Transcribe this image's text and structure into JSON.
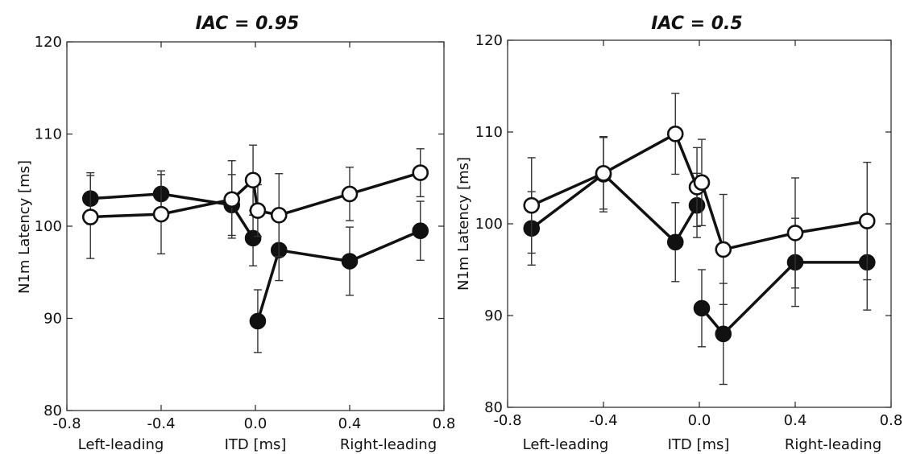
{
  "chart_data": [
    {
      "type": "line",
      "title": "IAC = 0.95",
      "ylabel": "N1m Latency [ms]",
      "xlabel": "ITD [ms]",
      "x_side_labels": {
        "left": "Left-leading",
        "right": "Right-leading"
      },
      "xlim": [
        -0.8,
        0.8
      ],
      "ylim": [
        80,
        120
      ],
      "xticks": [
        "-0.8",
        "-0.4",
        "0.0",
        "0.4",
        "0.8"
      ],
      "yticks": [
        "80",
        "90",
        "100",
        "110",
        "120"
      ],
      "grid": false,
      "series": [
        {
          "marker": "filled",
          "x": [
            -0.7,
            -0.4,
            -0.1,
            -0.01,
            0.01,
            0.1,
            0.4,
            0.7
          ],
          "y": [
            103.0,
            103.5,
            102.3,
            98.7,
            89.7,
            97.4,
            96.2,
            99.5
          ],
          "err": [
            2.8,
            2.5,
            3.3,
            3.0,
            3.4,
            3.3,
            3.7,
            3.2
          ],
          "connect": [
            [
              0,
              1,
              2,
              3
            ],
            [
              4,
              5,
              6,
              7
            ]
          ]
        },
        {
          "marker": "open",
          "x": [
            -0.7,
            -0.4,
            -0.1,
            -0.01,
            0.01,
            0.1,
            0.4,
            0.7
          ],
          "y": [
            101.0,
            101.3,
            102.9,
            105.0,
            101.7,
            101.2,
            103.5,
            105.8
          ],
          "err": [
            4.5,
            4.3,
            4.2,
            3.8,
            2.8,
            4.5,
            2.9,
            2.6
          ],
          "connect": [
            [
              0,
              1,
              2,
              3,
              4,
              5,
              6,
              7
            ]
          ]
        }
      ]
    },
    {
      "type": "line",
      "title": "IAC = 0.5",
      "ylabel": "N1m Latency [ms]",
      "xlabel": "ITD [ms]",
      "x_side_labels": {
        "left": "Left-leading",
        "right": "Right-leading"
      },
      "xlim": [
        -0.8,
        0.8
      ],
      "ylim": [
        80,
        120
      ],
      "xticks": [
        "-0.8",
        "-0.4",
        "0.0",
        "0.4",
        "0.8"
      ],
      "yticks": [
        "80",
        "90",
        "100",
        "110",
        "120"
      ],
      "grid": false,
      "series": [
        {
          "marker": "filled",
          "x": [
            -0.7,
            -0.4,
            -0.1,
            -0.01,
            0.01,
            0.1,
            0.4,
            0.7
          ],
          "y": [
            99.5,
            105.4,
            98.0,
            102.0,
            90.8,
            88.0,
            95.8,
            95.8
          ],
          "err": [
            4.0,
            4.1,
            4.3,
            3.5,
            4.2,
            5.5,
            4.8,
            5.2
          ],
          "connect": [
            [
              0,
              1,
              2,
              3
            ],
            [
              4,
              5,
              6,
              7
            ]
          ]
        },
        {
          "marker": "open",
          "x": [
            -0.7,
            -0.4,
            -0.1,
            -0.01,
            0.01,
            0.1,
            0.4,
            0.7
          ],
          "y": [
            102.0,
            105.5,
            109.8,
            104.0,
            104.5,
            97.2,
            99.0,
            100.3
          ],
          "err": [
            5.2,
            3.9,
            4.4,
            4.3,
            4.7,
            6.0,
            6.0,
            6.4
          ],
          "connect": [
            [
              0,
              1,
              2,
              3,
              4,
              5,
              6,
              7
            ]
          ]
        }
      ]
    }
  ]
}
